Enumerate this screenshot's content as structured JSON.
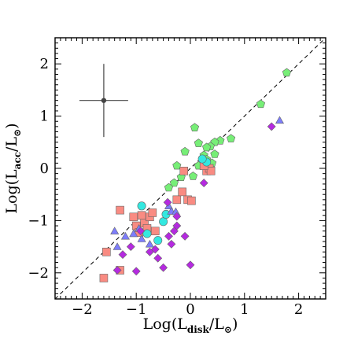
{
  "chart_data": {
    "type": "scatter",
    "title": "",
    "xlabel": {
      "main": "Log(L",
      "sub": "disk",
      "tail": "/L",
      "sun": "⊙",
      "close": ")"
    },
    "ylabel": {
      "main": "Log(L",
      "sub": "acc",
      "tail": "/L",
      "sun": "⊙",
      "close": ")"
    },
    "xlim": [
      -2.5,
      2.5
    ],
    "ylim": [
      -2.5,
      2.5
    ],
    "xticks": [
      -2,
      -1,
      0,
      1,
      2
    ],
    "yticks": [
      -2,
      -1,
      0,
      1,
      2
    ],
    "xtick_labels": [
      "−2",
      "−1",
      "0",
      "1",
      "2"
    ],
    "ytick_labels": [
      "−2",
      "−1",
      "0",
      "1",
      "2"
    ],
    "reference_line": {
      "style": "dashed",
      "x": [
        -2.5,
        2.5
      ],
      "y": [
        -2.5,
        2.5
      ]
    },
    "error_bar": {
      "x": -1.6,
      "y": 1.3,
      "xerr": 0.45,
      "yerr": 0.7
    },
    "series": [
      {
        "marker": "pentagon",
        "color": "#77ee77",
        "points": [
          [
            1.78,
            1.83
          ],
          [
            1.3,
            1.23
          ],
          [
            0.75,
            0.57
          ],
          [
            0.55,
            0.53
          ],
          [
            0.45,
            0.5
          ],
          [
            0.37,
            0.42
          ],
          [
            0.3,
            0.4
          ],
          [
            0.15,
            0.48
          ],
          [
            0.08,
            0.78
          ],
          [
            -0.1,
            0.32
          ],
          [
            0.45,
            0.27
          ],
          [
            0.25,
            0.25
          ],
          [
            0.3,
            0.17
          ],
          [
            0.15,
            0.05
          ],
          [
            -0.25,
            0.05
          ],
          [
            0.05,
            -0.15
          ],
          [
            -0.17,
            -0.17
          ],
          [
            -0.3,
            -0.28
          ],
          [
            -0.4,
            -0.37
          ],
          [
            0.4,
            0.1
          ]
        ]
      },
      {
        "marker": "square",
        "color": "#f98b82",
        "points": [
          [
            -1.6,
            -2.1
          ],
          [
            -1.55,
            -1.6
          ],
          [
            -1.3,
            -0.8
          ],
          [
            -1.3,
            -1.95
          ],
          [
            -1.05,
            -0.93
          ],
          [
            -1.0,
            -1.1
          ],
          [
            -0.95,
            -1.23
          ],
          [
            -0.9,
            -0.9
          ],
          [
            -0.85,
            -1.05
          ],
          [
            -0.8,
            -1.15
          ],
          [
            -0.75,
            -0.93
          ],
          [
            -0.7,
            -0.85
          ],
          [
            -0.65,
            -1.2
          ],
          [
            -0.25,
            -0.6
          ],
          [
            -0.12,
            -0.05
          ],
          [
            -0.05,
            -0.6
          ],
          [
            0.02,
            -0.62
          ],
          [
            0.3,
            -0.05
          ],
          [
            0.35,
            0.0
          ],
          [
            0.38,
            -0.05
          ],
          [
            -0.15,
            -0.45
          ],
          [
            0.25,
            0.05
          ]
        ]
      },
      {
        "marker": "circle",
        "color": "#33e8e0",
        "points": [
          [
            -0.9,
            -0.72
          ],
          [
            -0.8,
            -1.25
          ],
          [
            -0.6,
            -1.38
          ],
          [
            -0.5,
            -1.02
          ],
          [
            -0.45,
            -0.88
          ],
          [
            0.3,
            0.12
          ],
          [
            0.22,
            0.18
          ]
        ]
      },
      {
        "marker": "triangle",
        "color": "#7d7dfb",
        "points": [
          [
            1.65,
            0.92
          ],
          [
            -1.4,
            -1.2
          ],
          [
            -1.35,
            -1.5
          ],
          [
            -1.2,
            -1.3
          ],
          [
            -1.05,
            -1.25
          ],
          [
            -0.95,
            -1.15
          ],
          [
            -0.9,
            -1.35
          ],
          [
            -0.75,
            -1.45
          ],
          [
            -0.4,
            -0.72
          ],
          [
            -0.35,
            -0.82
          ],
          [
            -0.27,
            -0.83
          ]
        ]
      },
      {
        "marker": "diamond",
        "color": "#b52ae0",
        "points": [
          [
            1.5,
            0.8
          ],
          [
            -1.35,
            -1.95
          ],
          [
            -1.25,
            -1.65
          ],
          [
            -1.1,
            -1.5
          ],
          [
            -1.0,
            -1.97
          ],
          [
            -0.92,
            -1.2
          ],
          [
            -0.75,
            -1.6
          ],
          [
            -0.65,
            -1.55
          ],
          [
            -0.6,
            -1.72
          ],
          [
            -0.5,
            -1.9
          ],
          [
            -0.4,
            -1.3
          ],
          [
            -0.35,
            -1.45
          ],
          [
            -0.3,
            -1.2
          ],
          [
            -0.25,
            -1.1
          ],
          [
            -0.1,
            -1.3
          ],
          [
            0.0,
            -1.85
          ],
          [
            0.25,
            -0.28
          ],
          [
            -0.42,
            -0.65
          ],
          [
            -0.25,
            -0.92
          ]
        ]
      }
    ]
  }
}
